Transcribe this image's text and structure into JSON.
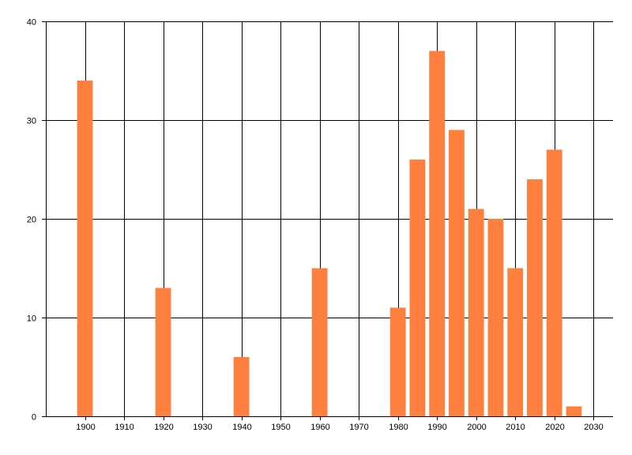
{
  "chart_data": {
    "type": "bar",
    "x": [
      1900,
      1920,
      1940,
      1960,
      1980,
      1985,
      1990,
      1995,
      2000,
      2005,
      2010,
      2015,
      2020,
      2025
    ],
    "values": [
      34,
      13,
      6,
      15,
      11,
      26,
      37,
      29,
      21,
      20,
      15,
      24,
      27,
      1
    ],
    "bar_width_years": 4,
    "title": "",
    "xlabel": "",
    "ylabel": "",
    "xlim": [
      1890,
      2035
    ],
    "ylim": [
      0,
      40
    ],
    "x_ticks": [
      "1900",
      "1910",
      "1920",
      "1930",
      "1940",
      "1950",
      "1960",
      "1970",
      "1980",
      "1990",
      "2000",
      "2010",
      "2020",
      "2030"
    ],
    "y_ticks": [
      "0",
      "10",
      "20",
      "30",
      "40"
    ],
    "grid": true,
    "legend": "none",
    "colors": {
      "bar": "#ff7f3f",
      "grid": "#000000",
      "axis": "#000000"
    }
  }
}
